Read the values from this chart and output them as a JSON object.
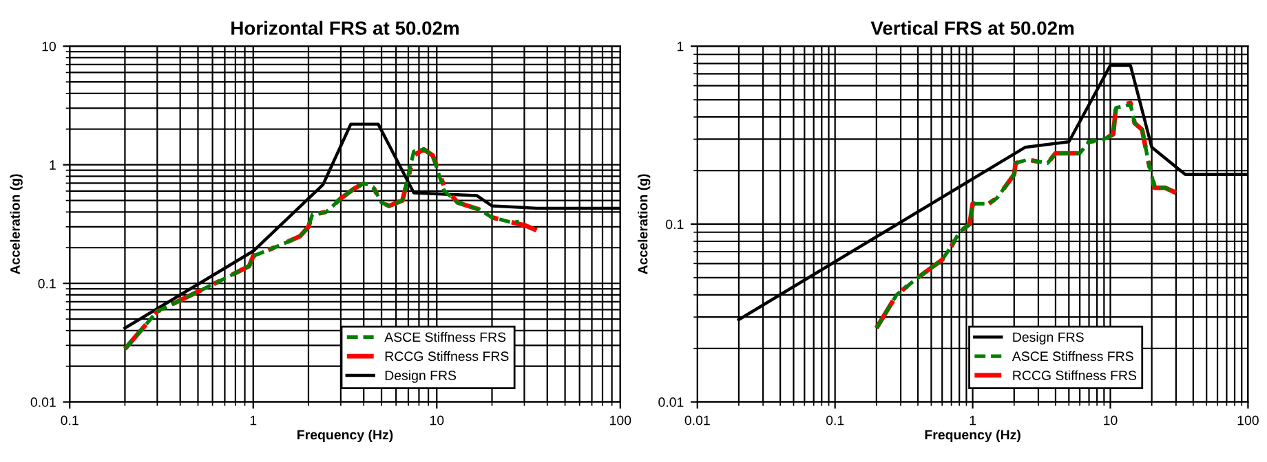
{
  "chart_data": [
    {
      "type": "line",
      "title": "Horizontal FRS at 50.02m",
      "xlabel": "Frequency (Hz)",
      "ylabel": "Acceleration (g)",
      "log": "xy",
      "grid": true,
      "legend": "bottom right",
      "xlim": [
        0.1,
        100
      ],
      "xticks": [
        0.1,
        1,
        10,
        100
      ],
      "ylim": [
        0.01,
        10
      ],
      "yticks": [
        0.01,
        0.1,
        1,
        10
      ],
      "series": [
        {
          "name": "ASCE Stiffness FRS",
          "color": "#008000",
          "line_style": "dashed",
          "x": [
            0.2,
            0.3,
            0.5,
            0.7,
            0.95,
            1.0,
            1.2,
            1.5,
            1.8,
            2.0,
            2.1,
            2.5,
            3.0,
            3.5,
            4.0,
            4.5,
            5.0,
            5.5,
            6.5,
            7.5,
            8.5,
            9.5,
            11,
            13,
            17,
            20,
            25,
            28
          ],
          "values": [
            0.028,
            0.058,
            0.085,
            0.11,
            0.14,
            0.17,
            0.19,
            0.22,
            0.25,
            0.3,
            0.38,
            0.4,
            0.52,
            0.62,
            0.7,
            0.65,
            0.48,
            0.45,
            0.5,
            1.3,
            1.35,
            1.2,
            0.6,
            0.48,
            0.42,
            0.36,
            0.33,
            0.33
          ]
        },
        {
          "name": "RCCG Stiffness FRS",
          "color": "#ff0000",
          "line_style": "dashdot",
          "x": [
            0.2,
            0.3,
            0.5,
            0.7,
            0.95,
            1.0,
            1.2,
            1.5,
            1.8,
            2.0,
            2.1,
            2.5,
            3.0,
            3.5,
            4.0,
            4.5,
            5.0,
            5.5,
            6.5,
            7.5,
            8.5,
            9.5,
            11,
            13,
            17,
            20,
            25,
            30,
            35
          ],
          "values": [
            0.028,
            0.058,
            0.085,
            0.11,
            0.14,
            0.17,
            0.19,
            0.22,
            0.25,
            0.3,
            0.38,
            0.4,
            0.52,
            0.62,
            0.7,
            0.65,
            0.48,
            0.45,
            0.5,
            1.2,
            1.35,
            1.2,
            0.65,
            0.48,
            0.42,
            0.36,
            0.33,
            0.31,
            0.28
          ]
        },
        {
          "name": "Design FRS",
          "color": "#000000",
          "line_style": "solid",
          "x": [
            0.2,
            1.0,
            2.4,
            3.4,
            4.8,
            7.5,
            16.5,
            20,
            35,
            100
          ],
          "values": [
            0.042,
            0.187,
            0.68,
            2.2,
            2.2,
            0.58,
            0.55,
            0.45,
            0.43,
            0.43
          ]
        }
      ]
    },
    {
      "type": "line",
      "title": "Vertical FRS at 50.02m",
      "xlabel": "Frequency (Hz)",
      "ylabel": "Acceleration (g)",
      "log": "xy",
      "grid": true,
      "legend": "bottom right",
      "xlim": [
        0.01,
        100
      ],
      "xticks": [
        0.01,
        0.1,
        1,
        10,
        100
      ],
      "ylim": [
        0.01,
        1
      ],
      "yticks": [
        0.01,
        0.1,
        1
      ],
      "series": [
        {
          "name": "Design FRS",
          "color": "#000000",
          "line_style": "solid",
          "x": [
            0.02,
            2.4,
            5.0,
            10,
            14,
            20,
            35,
            100
          ],
          "values": [
            0.029,
            0.27,
            0.29,
            0.78,
            0.78,
            0.27,
            0.19,
            0.19
          ]
        },
        {
          "name": "ASCE Stiffness FRS",
          "color": "#008000",
          "line_style": "dashed",
          "x": [
            0.2,
            0.28,
            0.4,
            0.6,
            0.7,
            0.8,
            0.95,
            1.0,
            1.3,
            1.5,
            2.0,
            2.05,
            2.5,
            3.5,
            4,
            6,
            7,
            9,
            10.5,
            11,
            14,
            15,
            17,
            19,
            21,
            25,
            30
          ],
          "values": [
            0.026,
            0.04,
            0.05,
            0.063,
            0.075,
            0.09,
            0.1,
            0.13,
            0.13,
            0.14,
            0.19,
            0.22,
            0.23,
            0.22,
            0.25,
            0.25,
            0.29,
            0.3,
            0.32,
            0.45,
            0.47,
            0.37,
            0.34,
            0.22,
            0.16,
            0.16,
            0.15
          ]
        },
        {
          "name": "RCCG Stiffness FRS",
          "color": "#ff0000",
          "line_style": "dashdot",
          "x": [
            0.2,
            0.28,
            0.4,
            0.6,
            0.7,
            0.8,
            0.95,
            1.0,
            1.3,
            1.5,
            2.0,
            2.05,
            2.5,
            3.5,
            4,
            6,
            7,
            9,
            10.5,
            11,
            14,
            15,
            17,
            19,
            21,
            25,
            30
          ],
          "values": [
            0.026,
            0.04,
            0.05,
            0.063,
            0.075,
            0.09,
            0.1,
            0.13,
            0.13,
            0.14,
            0.19,
            0.22,
            0.23,
            0.22,
            0.25,
            0.25,
            0.29,
            0.3,
            0.32,
            0.46,
            0.48,
            0.37,
            0.34,
            0.22,
            0.16,
            0.16,
            0.15
          ]
        }
      ]
    }
  ]
}
